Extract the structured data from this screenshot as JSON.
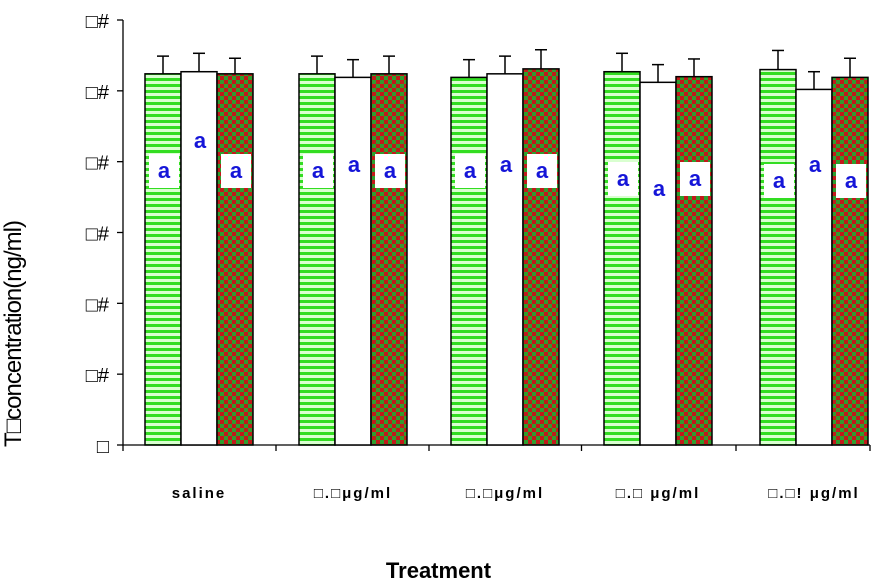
{
  "chart_data": {
    "type": "bar",
    "xlabel": "Treatment",
    "ylabel": "T□concentration(ng/ml)",
    "y_ticks": [
      "□",
      "□#",
      "□#",
      "□#",
      "□#",
      "□#",
      "□#"
    ],
    "ylim": [
      0,
      6
    ],
    "grid": false,
    "legend": "none",
    "categories": [
      "saline",
      "□.□μg/ml",
      "□.□μg/ml",
      "□.□ μg/ml",
      "□.□! μg/ml"
    ],
    "series": [
      {
        "pattern": "green-horizontal-stripes",
        "values": [
          5.24,
          5.24,
          5.19,
          5.27,
          5.3
        ],
        "errors": [
          0.25,
          0.25,
          0.25,
          0.26,
          0.27
        ]
      },
      {
        "pattern": "white",
        "values": [
          5.27,
          5.19,
          5.24,
          5.12,
          5.02
        ],
        "errors": [
          0.26,
          0.25,
          0.25,
          0.25,
          0.25
        ]
      },
      {
        "pattern": "red-green-checkered",
        "values": [
          5.24,
          5.24,
          5.31,
          5.2,
          5.19
        ],
        "errors": [
          0.22,
          0.25,
          0.27,
          0.25,
          0.27
        ]
      }
    ],
    "annotations": [
      [
        "a",
        "a",
        "a"
      ],
      [
        "a",
        "a",
        "a"
      ],
      [
        "a",
        "a",
        "a"
      ],
      [
        "a",
        "a",
        "a"
      ],
      [
        "a",
        "a",
        "a"
      ]
    ],
    "colors": {
      "green": "#33dd22",
      "green_stripe": "#d9ffd0",
      "red": "#c21a1a",
      "check_green": "#2e9e2e",
      "label": "#1515d8"
    }
  }
}
